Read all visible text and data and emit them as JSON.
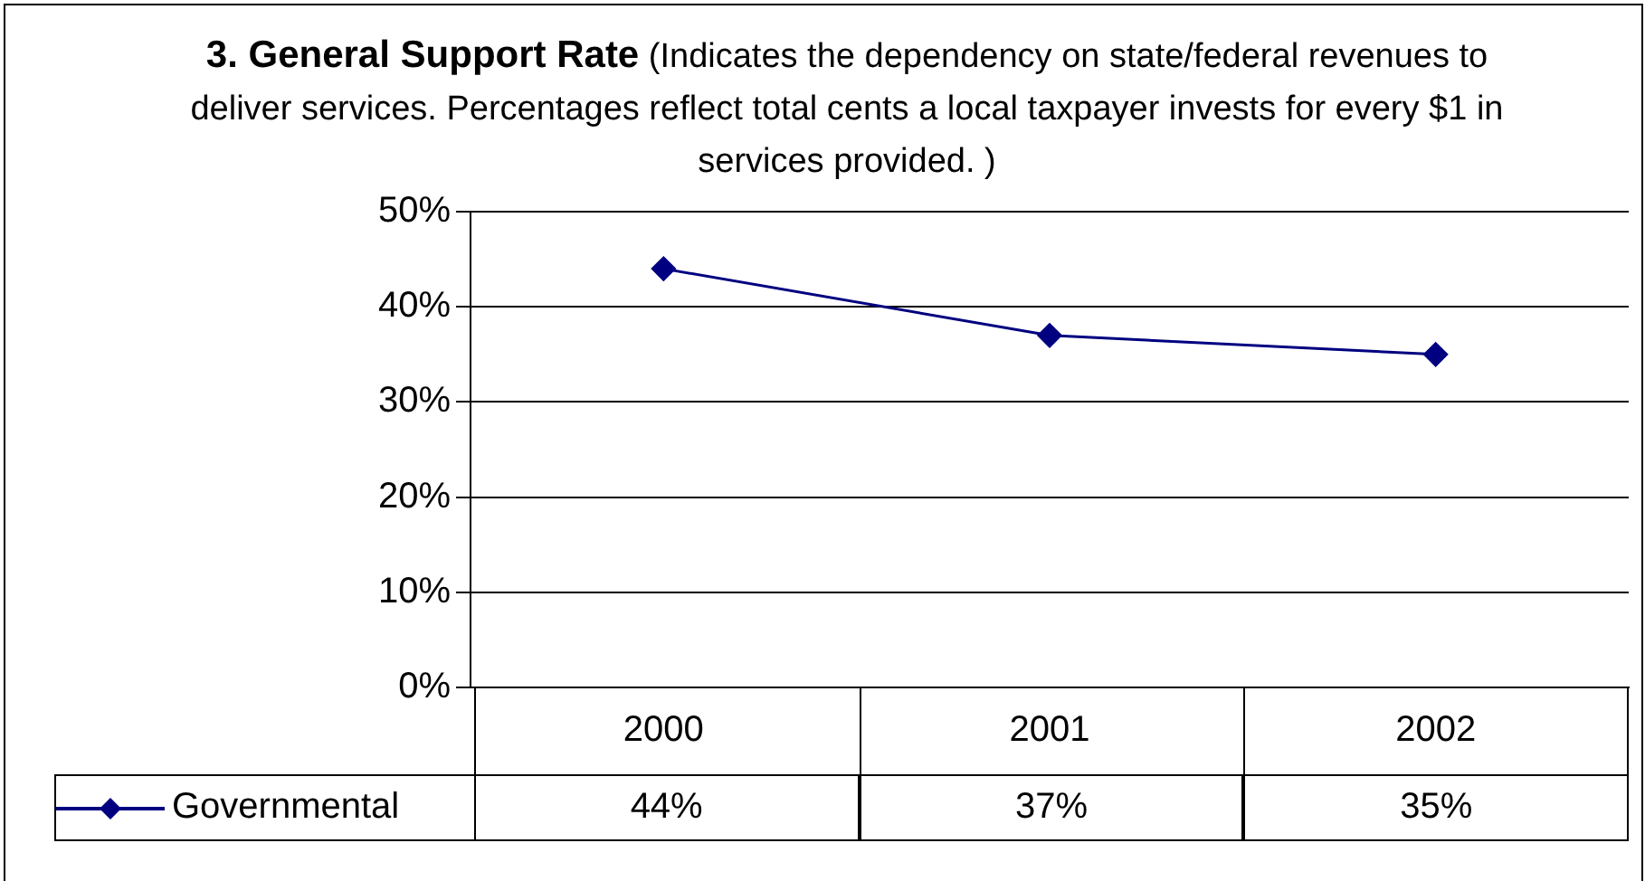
{
  "chart_data": {
    "type": "line",
    "title": "3. General Support Rate",
    "subtitle": "(Indicates the dependency on state/federal revenues to deliver services. Percentages reflect total cents a local taxpayer invests for every $1 in services provided. )",
    "categories": [
      "2000",
      "2001",
      "2002"
    ],
    "series": [
      {
        "name": "Governmental",
        "color": "#000080",
        "values": [
          44,
          37,
          35
        ],
        "value_labels": [
          "44%",
          "37%",
          "35%"
        ]
      }
    ],
    "ylim": [
      0,
      50
    ],
    "yticks": [
      {
        "value": 0,
        "label": "0%"
      },
      {
        "value": 10,
        "label": "10%"
      },
      {
        "value": 20,
        "label": "20%"
      },
      {
        "value": 30,
        "label": "30%"
      },
      {
        "value": 40,
        "label": "40%"
      },
      {
        "value": 50,
        "label": "50%"
      }
    ],
    "grid": "y",
    "legend": "bottom",
    "marker": "diamond",
    "line_style": "solid"
  }
}
